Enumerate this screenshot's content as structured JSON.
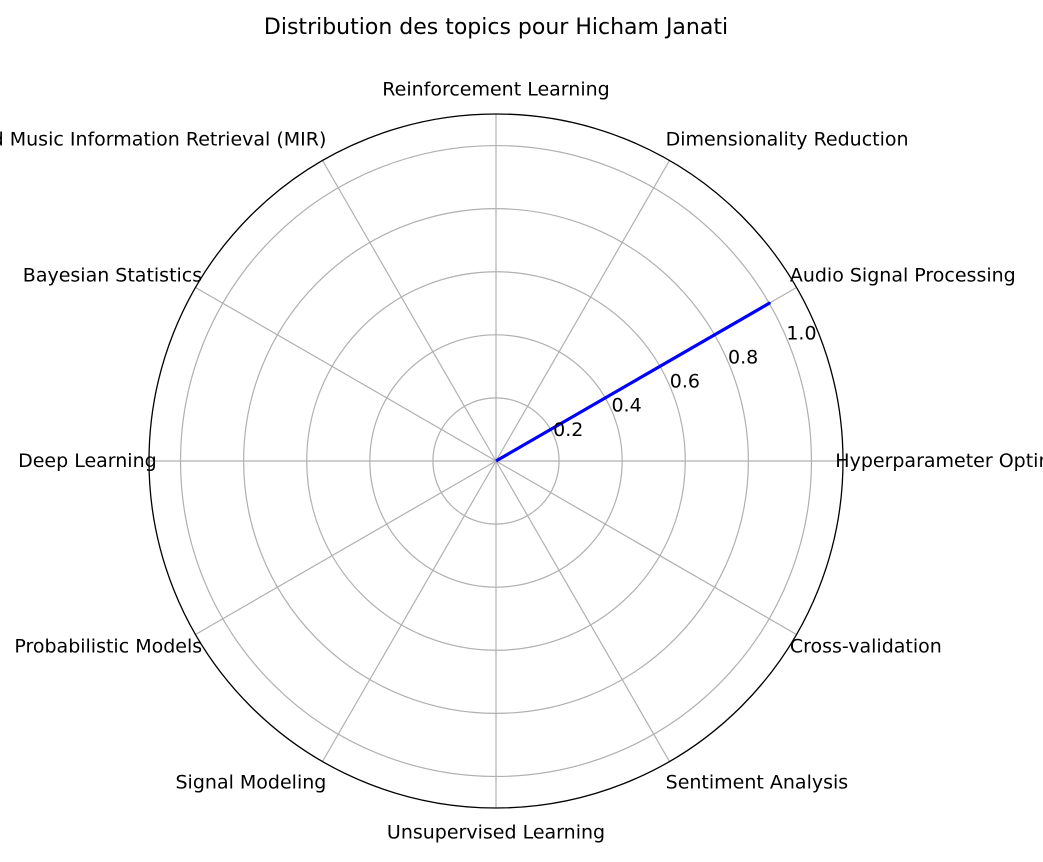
{
  "chart_data": {
    "type": "radar",
    "title": "Distribution des topics pour Hicham Janati",
    "categories": [
      "Hyperparameter Optimization",
      "Audio Signal Processing",
      "Dimensionality Reduction",
      "Reinforcement Learning",
      "Machine Listening and Music Information Retrieval (MIR)",
      "Bayesian Statistics",
      "Deep Learning",
      "Probabilistic Models",
      "Signal Modeling",
      "Unsupervised Learning",
      "Sentiment Analysis",
      "Cross-validation"
    ],
    "series": [
      {
        "color": "#0000ff",
        "values": [
          0,
          1,
          0,
          0,
          0,
          0,
          0,
          0,
          0,
          0,
          0,
          0
        ]
      }
    ],
    "rlim": [
      0,
      1.1
    ],
    "rticks": [
      "0.2",
      "0.4",
      "0.6",
      "0.8",
      "1.0"
    ],
    "rtick_values": [
      0.2,
      0.4,
      0.6,
      0.8,
      1.0
    ],
    "grid": true
  }
}
